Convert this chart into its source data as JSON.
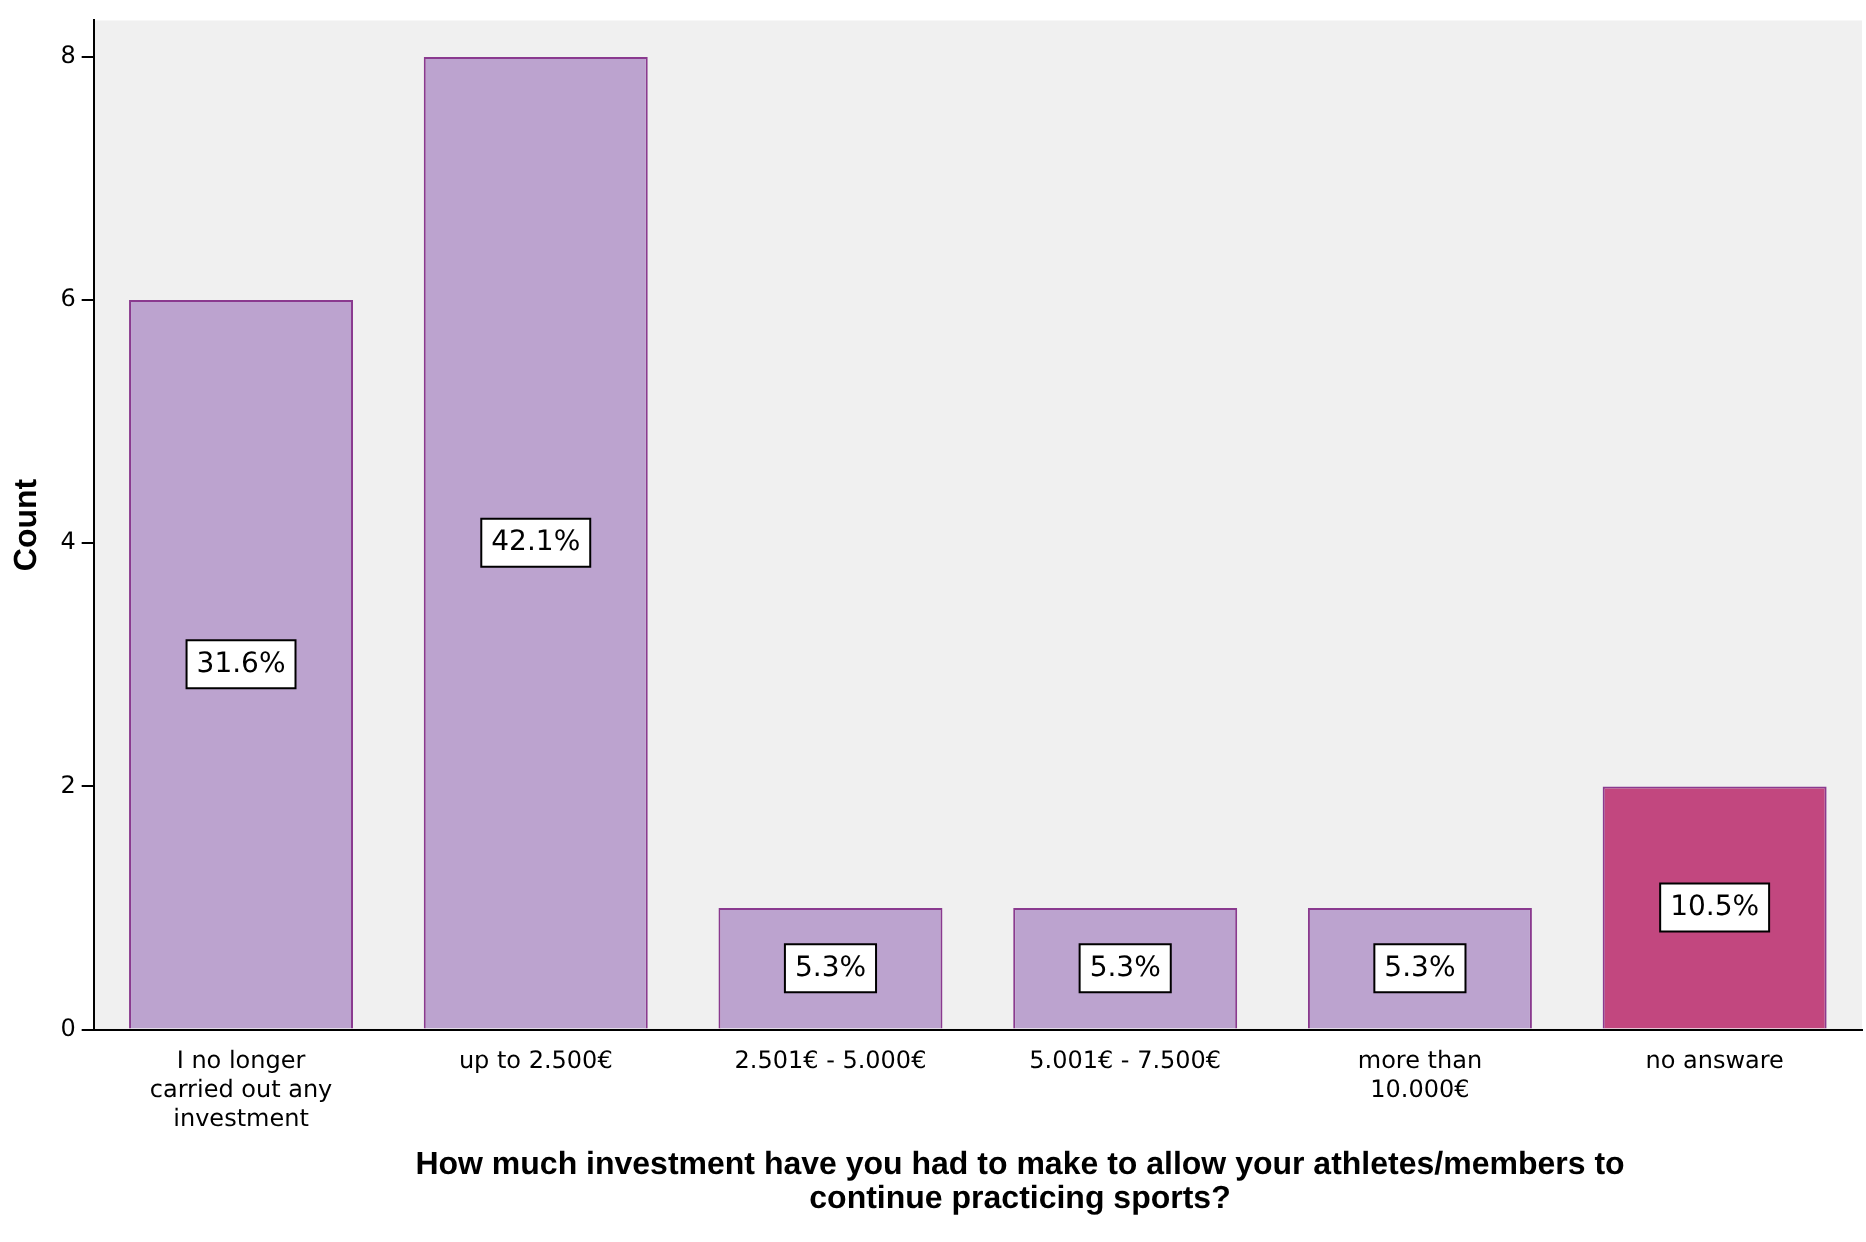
{
  "chart_data": {
    "type": "bar",
    "xlabel": "How much investment have you had to make to allow your athletes/members to continue practicing sports?",
    "ylabel": "Count",
    "categories": [
      "I no longer carried out any investment",
      "up to 2.500€",
      "2.501€ - 5.000€",
      "5.001€ - 7.500€",
      "more than 10.000€",
      "no answare"
    ],
    "values": [
      6,
      8,
      1,
      1,
      1,
      2
    ],
    "colors": [
      "#bca3cf",
      "#bca3cf",
      "#bca3cf",
      "#bca3cf",
      "#bca3cf",
      "#c2477f"
    ],
    "annotations": [
      "31.6%",
      "42.1%",
      "5.3%",
      "5.3%",
      "5.3%",
      "10.5%"
    ],
    "ylim": [
      0,
      8.3
    ],
    "yticks": [
      0,
      2,
      4,
      6,
      8
    ],
    "grid": false,
    "legend": false
  }
}
